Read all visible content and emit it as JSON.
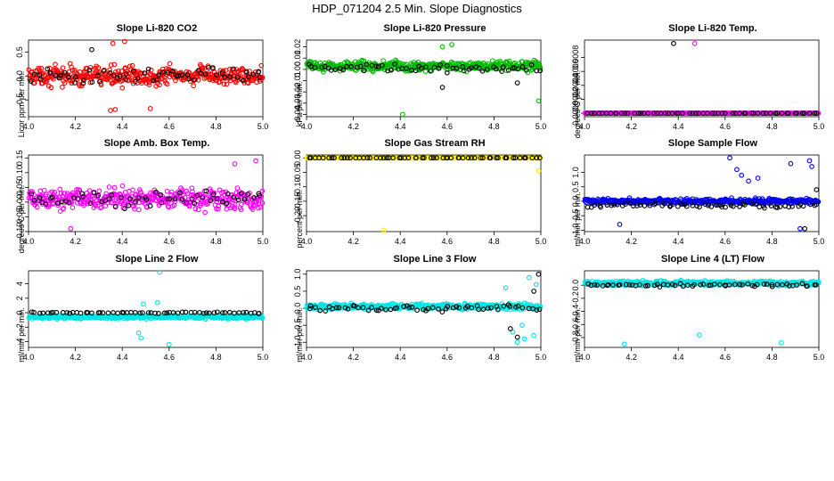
{
  "figure": {
    "title": "HDP_071204  2.5 Min. Slope Diagnostics"
  },
  "chart_data": [
    {
      "type": "scatter",
      "title": "Slope Li-820 CO2",
      "ylabel": "Licor ppm per min.",
      "xlabel": "",
      "xlim": [
        4.0,
        5.0
      ],
      "ylim": [
        -0.85,
        0.75
      ],
      "xticks": [
        4.0,
        4.2,
        4.4,
        4.6,
        4.8,
        5.0
      ],
      "yticks": [
        -0.5,
        0.0,
        0.5
      ],
      "ytick_labels": [
        "-0.5",
        "0.0",
        "0.5"
      ],
      "series": [
        {
          "name": "main",
          "color": "#ff0000",
          "n": 420,
          "center": 0.0,
          "spread": 0.28,
          "outliers": [
            [
              4.35,
              -0.72
            ],
            [
              4.37,
              -0.7
            ],
            [
              4.41,
              0.72
            ],
            [
              4.36,
              0.68
            ],
            [
              4.52,
              -0.68
            ]
          ]
        },
        {
          "name": "flagged",
          "color": "#000000",
          "n": 60,
          "center": 0.0,
          "spread": 0.22,
          "outliers": [
            [
              4.27,
              0.55
            ]
          ]
        }
      ]
    },
    {
      "type": "scatter",
      "title": "Slope Li-820 Pressure",
      "ylabel": "kPa per min.",
      "xlabel": "",
      "xlim": [
        4.0,
        5.0
      ],
      "ylim": [
        -0.042,
        0.026
      ],
      "xticks": [
        4.0,
        4.2,
        4.4,
        4.6,
        4.8,
        5.0
      ],
      "yticks": [
        -0.04,
        -0.03,
        -0.02,
        -0.01,
        0.0,
        0.01,
        0.02
      ],
      "ytick_labels": [
        "-0.04",
        "-0.03",
        "-0.02",
        "-0.01",
        "0.00",
        "0.01",
        "0.02"
      ],
      "series": [
        {
          "name": "main",
          "color": "#00bb00",
          "n": 420,
          "center": 0.003,
          "spread": 0.006,
          "outliers": [
            [
              4.41,
              -0.04
            ],
            [
              4.62,
              0.022
            ],
            [
              4.99,
              -0.028
            ],
            [
              4.58,
              0.02
            ]
          ]
        },
        {
          "name": "flagged",
          "color": "#000000",
          "n": 60,
          "center": 0.001,
          "spread": 0.005,
          "outliers": [
            [
              4.58,
              -0.016
            ],
            [
              4.9,
              -0.012
            ]
          ]
        }
      ]
    },
    {
      "type": "scatter",
      "title": "Slope Li-820 Temp.",
      "ylabel": "degrees C per min.",
      "xlabel": "",
      "xlim": [
        4.0,
        5.0
      ],
      "ylim": [
        -5e-05,
        0.00105
      ],
      "xticks": [
        4.0,
        4.2,
        4.4,
        4.6,
        4.8,
        5.0
      ],
      "yticks": [
        0.0,
        0.0002,
        0.0004,
        0.0006,
        0.0008
      ],
      "ytick_labels": [
        "0.0000",
        "0.0002",
        "0.0004",
        "0.0006",
        "0.0008"
      ],
      "series": [
        {
          "name": "main",
          "color": "#ff00ff",
          "n": 420,
          "center": 0.0,
          "spread": 0.0,
          "outliers": [
            [
              4.47,
              0.001
            ]
          ]
        },
        {
          "name": "flagged",
          "color": "#000000",
          "n": 60,
          "center": 0.0,
          "spread": 0.0,
          "outliers": [
            [
              4.38,
              0.001
            ]
          ]
        }
      ]
    },
    {
      "type": "scatter",
      "title": "Slope Amb. Box Temp.",
      "ylabel": "degrees C per min.",
      "xlabel": "",
      "xlim": [
        4.0,
        5.0
      ],
      "ylim": [
        -0.1,
        0.16
      ],
      "xticks": [
        4.0,
        4.2,
        4.4,
        4.6,
        4.8,
        5.0
      ],
      "yticks": [
        -0.1,
        -0.05,
        0.0,
        0.05,
        0.1,
        0.15
      ],
      "ytick_labels": [
        "-0.10",
        "-0.05",
        "0.00",
        "0.05",
        "0.10",
        "0.15"
      ],
      "series": [
        {
          "name": "main",
          "color": "#ff00ff",
          "n": 420,
          "center": 0.01,
          "spread": 0.05,
          "outliers": [
            [
              4.97,
              0.14
            ],
            [
              4.88,
              0.13
            ],
            [
              4.18,
              -0.09
            ]
          ]
        },
        {
          "name": "flagged",
          "color": "#000000",
          "n": 60,
          "center": 0.01,
          "spread": 0.04,
          "outliers": []
        }
      ]
    },
    {
      "type": "scatter",
      "title": "Slope Gas Stream RH",
      "ylabel": "percent per min.",
      "xlabel": "",
      "xlim": [
        4.0,
        5.0
      ],
      "ylim": [
        -0.255,
        0.01
      ],
      "xticks": [
        4.0,
        4.2,
        4.4,
        4.6,
        4.8,
        5.0
      ],
      "yticks": [
        -0.2,
        -0.15,
        -0.1,
        -0.05,
        0.0
      ],
      "ytick_labels": [
        "-0.20",
        "-0.15",
        "-0.10",
        "-0.05",
        "0.00"
      ],
      "series": [
        {
          "name": "main",
          "color": "#ffee00",
          "n": 420,
          "center": 0.0,
          "spread": 0.0,
          "outliers": [
            [
              4.33,
              -0.25
            ],
            [
              4.99,
              -0.045
            ],
            [
              4.01,
              0.0
            ]
          ]
        },
        {
          "name": "flagged",
          "color": "#000000",
          "n": 60,
          "center": 0.0,
          "spread": 0.0,
          "outliers": []
        }
      ]
    },
    {
      "type": "scatter",
      "title": "Slope Sample Flow",
      "ylabel": "ml/min per min.",
      "xlabel": "",
      "xlim": [
        4.0,
        5.0
      ],
      "ylim": [
        -1.05,
        1.6
      ],
      "xticks": [
        4.0,
        4.2,
        4.4,
        4.6,
        4.8,
        5.0
      ],
      "yticks": [
        -1.0,
        -0.5,
        0.0,
        0.5,
        1.0
      ],
      "ytick_labels": [
        "-1.0",
        "-0.5",
        "0.0",
        "0.5",
        "1.0"
      ],
      "series": [
        {
          "name": "main",
          "color": "#0000ee",
          "n": 420,
          "center": 0.0,
          "spread": 0.14,
          "outliers": [
            [
              4.62,
              1.5
            ],
            [
              4.65,
              1.1
            ],
            [
              4.67,
              0.9
            ],
            [
              4.7,
              0.7
            ],
            [
              4.88,
              1.3
            ],
            [
              4.96,
              1.4
            ],
            [
              4.97,
              1.2
            ],
            [
              4.92,
              -0.95
            ],
            [
              4.15,
              -0.8
            ],
            [
              4.74,
              0.8
            ]
          ]
        },
        {
          "name": "flagged",
          "color": "#000000",
          "n": 60,
          "center": -0.15,
          "spread": 0.12,
          "outliers": [
            [
              4.94,
              -0.95
            ],
            [
              4.99,
              0.4
            ]
          ]
        }
      ]
    },
    {
      "type": "scatter",
      "title": "Slope Line 2 Flow",
      "ylabel": "ml/min per min.",
      "xlabel": "",
      "xlim": [
        4.0,
        5.0
      ],
      "ylim": [
        -4.8,
        5.8
      ],
      "xticks": [
        4.0,
        4.2,
        4.4,
        4.6,
        4.8,
        5.0
      ],
      "yticks": [
        -4,
        -2,
        0,
        2,
        4
      ],
      "ytick_labels": [
        "-4",
        "-2",
        "0",
        "2",
        "4"
      ],
      "series": [
        {
          "name": "main",
          "color": "#00e5e5",
          "n": 420,
          "center": -0.6,
          "spread": 0.35,
          "outliers": [
            [
              4.56,
              5.6
            ],
            [
              4.6,
              -4.4
            ],
            [
              4.48,
              -3.5
            ],
            [
              4.47,
              -2.8
            ],
            [
              4.49,
              1.2
            ],
            [
              4.55,
              1.4
            ]
          ]
        },
        {
          "name": "flagged",
          "color": "#000000",
          "n": 60,
          "center": 0.0,
          "spread": 0.15,
          "outliers": []
        }
      ]
    },
    {
      "type": "scatter",
      "title": "Slope Line 3 Flow",
      "ylabel": "ml/min per min.",
      "xlabel": "",
      "xlim": [
        4.0,
        5.0
      ],
      "ylim": [
        -1.15,
        1.1
      ],
      "xticks": [
        4.0,
        4.2,
        4.4,
        4.6,
        4.8,
        5.0
      ],
      "yticks": [
        -1.0,
        -0.5,
        0.0,
        0.5,
        1.0
      ],
      "ytick_labels": [
        "-1.0",
        "-0.5",
        "0.0",
        "0.5",
        "1.0"
      ],
      "series": [
        {
          "name": "main",
          "color": "#00e5e5",
          "n": 420,
          "center": 0.05,
          "spread": 0.13,
          "outliers": [
            [
              4.9,
              -1.0
            ],
            [
              4.93,
              -0.9
            ],
            [
              4.95,
              0.9
            ],
            [
              4.97,
              -0.8
            ],
            [
              4.88,
              -0.7
            ],
            [
              4.85,
              0.6
            ],
            [
              4.92,
              -0.5
            ],
            [
              4.98,
              0.7
            ]
          ]
        },
        {
          "name": "flagged",
          "color": "#000000",
          "n": 60,
          "center": 0.0,
          "spread": 0.15,
          "outliers": [
            [
              4.9,
              -0.85
            ],
            [
              4.99,
              1.0
            ],
            [
              4.87,
              -0.6
            ],
            [
              4.97,
              0.5
            ]
          ]
        }
      ]
    },
    {
      "type": "scatter",
      "title": "Slope Line 4 (LT) Flow",
      "ylabel": "ml/min per min.",
      "xlabel": "",
      "xlim": [
        4.0,
        5.0
      ],
      "ylim": [
        -0.95,
        0.22
      ],
      "xticks": [
        4.0,
        4.2,
        4.4,
        4.6,
        4.8,
        5.0
      ],
      "yticks": [
        -0.8,
        -0.6,
        -0.4,
        -0.2,
        0.0
      ],
      "ytick_labels": [
        "-0.8",
        "-0.6",
        "-0.4",
        "-0.2",
        "0.0"
      ],
      "series": [
        {
          "name": "main",
          "color": "#00e5e5",
          "n": 420,
          "center": 0.03,
          "spread": 0.05,
          "outliers": [
            [
              4.17,
              -0.9
            ],
            [
              4.49,
              -0.76
            ],
            [
              4.84,
              -0.88
            ]
          ]
        },
        {
          "name": "flagged",
          "color": "#000000",
          "n": 60,
          "center": 0.0,
          "spread": 0.04,
          "outliers": []
        }
      ]
    }
  ]
}
